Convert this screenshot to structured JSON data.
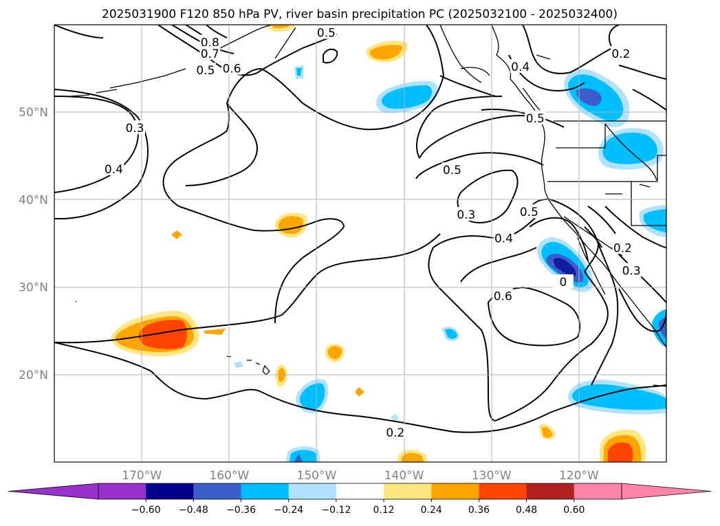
{
  "chart_data": {
    "type": "contour-map",
    "title": "2025031900 F120 850 hPa PV, river basin precipitation PC (2025032100 - 2025032400)",
    "lon_range": [
      -180,
      -110
    ],
    "lat_range": [
      10,
      60
    ],
    "lon_ticks": [
      -170,
      -160,
      -150,
      -140,
      -130,
      -120
    ],
    "lon_tick_labels": [
      "170°W",
      "160°W",
      "150°W",
      "140°W",
      "130°W",
      "120°W"
    ],
    "lat_ticks": [
      20,
      30,
      40,
      50
    ],
    "lat_tick_labels": [
      "20°N",
      "30°N",
      "40°N",
      "50°N"
    ],
    "grid": true,
    "colorbar": {
      "ticks": [
        -0.6,
        -0.48,
        -0.36,
        -0.24,
        -0.12,
        0.12,
        0.24,
        0.36,
        0.48,
        0.6
      ],
      "tick_labels": [
        "−0.60",
        "−0.48",
        "−0.36",
        "−0.24",
        "−0.12",
        "0.12",
        "0.24",
        "0.36",
        "0.48",
        "0.60"
      ],
      "colors": [
        "#9932CC",
        "#00008B",
        "#3A5FCD",
        "#00BFFF",
        "#B0E2FF",
        "#FFFFFF",
        "#FFE680",
        "#FFA500",
        "#FF4500",
        "#B22222",
        "#FF86A8"
      ],
      "extend": "both"
    },
    "contour_labels": [
      {
        "text": "0.8",
        "lon": -162.2,
        "lat": 58.0
      },
      {
        "text": "0.7",
        "lon": -162.2,
        "lat": 56.7
      },
      {
        "text": "0.5",
        "lon": -162.7,
        "lat": 54.8
      },
      {
        "text": "0.6",
        "lon": -159.7,
        "lat": 55.0
      },
      {
        "text": "0.5",
        "lon": -148.9,
        "lat": 59.1
      },
      {
        "text": "0.3",
        "lon": -170.8,
        "lat": 48.2
      },
      {
        "text": "0.4",
        "lon": -173.2,
        "lat": 43.5
      },
      {
        "text": "0.4",
        "lon": -126.7,
        "lat": 55.2
      },
      {
        "text": "0.2",
        "lon": -115.2,
        "lat": 56.7
      },
      {
        "text": "0.5",
        "lon": -125.0,
        "lat": 49.3
      },
      {
        "text": "0.5",
        "lon": -134.5,
        "lat": 43.4
      },
      {
        "text": "0.3",
        "lon": -132.9,
        "lat": 38.3
      },
      {
        "text": "0.4",
        "lon": -128.6,
        "lat": 35.6
      },
      {
        "text": "0.5",
        "lon": -125.7,
        "lat": 38.6
      },
      {
        "text": "0.6",
        "lon": -128.7,
        "lat": 29.0
      },
      {
        "text": "0.2",
        "lon": -115.0,
        "lat": 34.5
      },
      {
        "text": "0.3",
        "lon": -114.0,
        "lat": 31.9
      },
      {
        "text": "0",
        "lon": -121.8,
        "lat": 30.6
      },
      {
        "text": "0.2",
        "lon": -141.0,
        "lat": 13.4
      }
    ]
  }
}
